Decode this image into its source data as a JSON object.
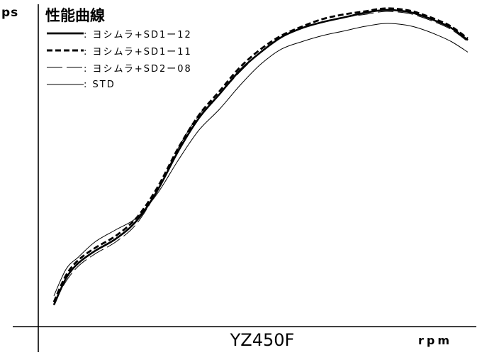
{
  "chart_data": {
    "type": "line",
    "title": "性能曲線",
    "ylabel": "ps",
    "xlabel": "rpm",
    "model_label": "YZ450F",
    "grid": false,
    "legend_position": "top-left",
    "xlim": [
      0,
      100
    ],
    "ylim": [
      0,
      100
    ],
    "x": [
      0,
      3,
      6,
      10,
      15,
      20,
      25,
      30,
      35,
      40,
      45,
      50,
      55,
      60,
      65,
      70,
      75,
      80,
      85,
      88,
      92,
      96,
      100
    ],
    "series": [
      {
        "name": ": ヨシムラ+SD1ー12",
        "style": "solid-thick",
        "values": [
          2,
          11,
          16,
          20,
          24,
          30,
          40,
          53,
          64,
          72,
          80,
          86,
          91,
          94,
          96,
          97.5,
          99,
          100,
          99.5,
          98.5,
          96.5,
          94,
          90
        ]
      },
      {
        "name": ": ヨシムラ+SD1ー11",
        "style": "dashed-thick",
        "values": [
          3,
          12,
          17,
          21,
          25,
          31,
          41,
          54,
          65,
          73,
          81,
          87,
          91.5,
          94.5,
          97,
          98.5,
          99.5,
          100.5,
          100,
          99,
          97,
          94.5,
          90.5
        ]
      },
      {
        "name": ": ヨシムラ+SD2ー08",
        "style": "dashed-thin",
        "values": [
          2.5,
          10,
          15,
          19,
          23,
          29,
          40,
          54,
          65,
          72,
          79.5,
          86,
          91,
          94,
          96,
          97.5,
          98.5,
          99.5,
          99,
          98,
          96,
          93.5,
          89.5
        ]
      },
      {
        "name": ": STD",
        "style": "solid-thin",
        "values": [
          5,
          14,
          18,
          23,
          27,
          31,
          39,
          50,
          60,
          67,
          75,
          82,
          87,
          89.5,
          91.5,
          93,
          94.5,
          95.5,
          95,
          94,
          92,
          89.5,
          86
        ]
      }
    ]
  }
}
